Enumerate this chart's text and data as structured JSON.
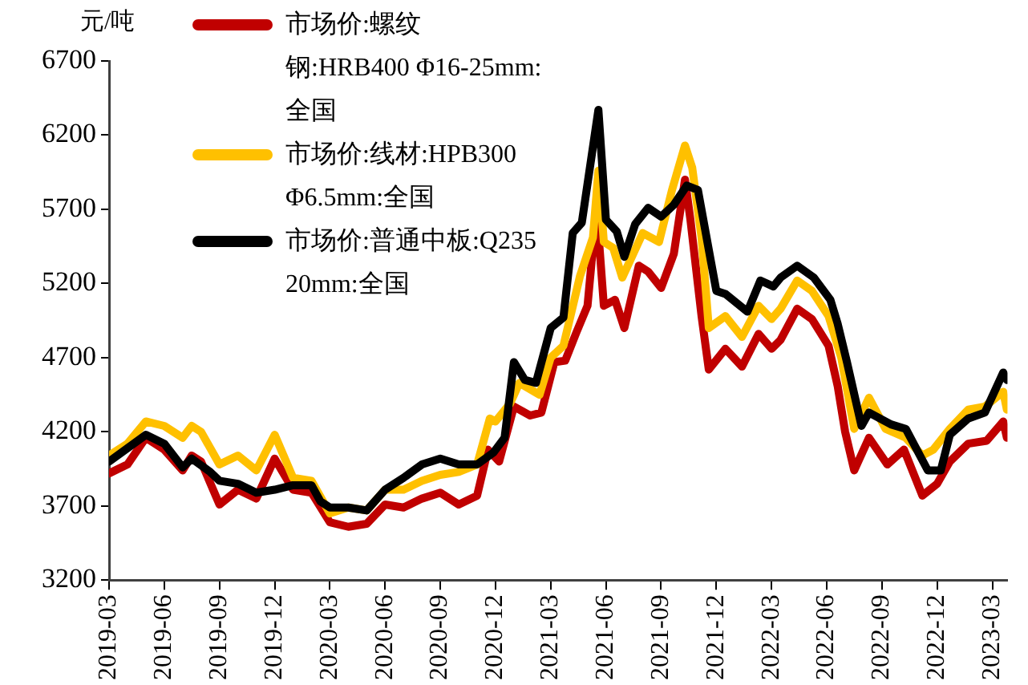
{
  "chart_data": {
    "type": "line",
    "ylabel": "元/吨",
    "xlim": [
      "2019-03-01",
      "2023-03-26"
    ],
    "ylim": [
      3200,
      6700
    ],
    "yticks": [
      3200,
      3700,
      4200,
      4700,
      5200,
      5700,
      6200,
      6700
    ],
    "xticks": [
      "2019-03",
      "2019-06",
      "2019-09",
      "2019-12",
      "2020-03",
      "2020-06",
      "2020-09",
      "2020-12",
      "2021-03",
      "2021-06",
      "2021-09",
      "2021-12",
      "2022-03",
      "2022-06",
      "2022-09",
      "2022-12",
      "2023-03"
    ],
    "grid": false,
    "legend": "top left",
    "marker": "none",
    "line_style": "solid",
    "series": [
      {
        "name": "市场价:螺纹钢:HRB400 Φ16-25mm:全国",
        "color": "#c00000",
        "x": [
          "2019-03-01",
          "2019-04-01",
          "2019-05-01",
          "2019-06-01",
          "2019-07-01",
          "2019-07-16",
          "2019-08-01",
          "2019-09-01",
          "2019-10-01",
          "2019-11-01",
          "2019-12-01",
          "2020-01-01",
          "2020-02-01",
          "2020-03-01",
          "2020-04-01",
          "2020-05-01",
          "2020-06-01",
          "2020-07-01",
          "2020-08-01",
          "2020-09-01",
          "2020-10-01",
          "2020-11-01",
          "2020-11-19",
          "2020-12-07",
          "2021-01-01",
          "2021-01-28",
          "2021-02-16",
          "2021-03-07",
          "2021-03-25",
          "2021-04-13",
          "2021-05-01",
          "2021-05-16",
          "2021-05-28",
          "2021-06-16",
          "2021-07-01",
          "2021-07-25",
          "2021-08-10",
          "2021-09-01",
          "2021-09-22",
          "2021-10-10",
          "2021-10-19",
          "2021-11-07",
          "2021-11-19",
          "2021-12-16",
          "2022-01-13",
          "2022-02-10",
          "2022-03-01",
          "2022-03-16",
          "2022-04-13",
          "2022-05-07",
          "2022-06-04",
          "2022-06-19",
          "2022-07-01",
          "2022-07-16",
          "2022-08-10",
          "2022-09-10",
          "2022-10-07",
          "2022-11-07",
          "2022-12-01",
          "2022-12-22",
          "2023-01-22",
          "2023-02-22",
          "2023-03-19",
          "2023-03-25"
        ],
        "values": [
          3920,
          3980,
          4160,
          4080,
          3940,
          4040,
          4000,
          3710,
          3810,
          3750,
          4020,
          3810,
          3790,
          3590,
          3560,
          3580,
          3710,
          3690,
          3750,
          3790,
          3710,
          3770,
          4080,
          4000,
          4370,
          4310,
          4330,
          4670,
          4680,
          4870,
          5050,
          5710,
          5050,
          5090,
          4900,
          5320,
          5280,
          5170,
          5400,
          5900,
          5630,
          4980,
          4620,
          4760,
          4640,
          4860,
          4760,
          4820,
          5030,
          4960,
          4780,
          4510,
          4200,
          3940,
          4160,
          3980,
          4080,
          3770,
          3850,
          4000,
          4120,
          4140,
          4270,
          4160
        ]
      },
      {
        "name": "市场价:线材:HPB300 Φ6.5mm:全国",
        "color": "#ffc000",
        "x": [
          "2019-03-01",
          "2019-04-01",
          "2019-05-01",
          "2019-06-01",
          "2019-07-01",
          "2019-07-16",
          "2019-08-01",
          "2019-09-01",
          "2019-10-01",
          "2019-11-01",
          "2019-12-01",
          "2020-01-01",
          "2020-02-01",
          "2020-03-01",
          "2020-04-01",
          "2020-05-01",
          "2020-06-01",
          "2020-07-01",
          "2020-08-01",
          "2020-09-01",
          "2020-10-01",
          "2020-11-01",
          "2020-11-22",
          "2020-12-01",
          "2020-12-25",
          "2021-01-10",
          "2021-02-13",
          "2021-03-01",
          "2021-03-22",
          "2021-04-19",
          "2021-05-10",
          "2021-05-19",
          "2021-05-28",
          "2021-06-13",
          "2021-06-28",
          "2021-08-01",
          "2021-08-28",
          "2021-09-19",
          "2021-10-10",
          "2021-10-22",
          "2021-11-07",
          "2021-11-19",
          "2021-12-16",
          "2022-01-13",
          "2022-02-10",
          "2022-03-01",
          "2022-03-16",
          "2022-04-13",
          "2022-05-07",
          "2022-06-04",
          "2022-06-25",
          "2022-07-16",
          "2022-08-10",
          "2022-09-07",
          "2022-10-10",
          "2022-11-07",
          "2022-11-25",
          "2022-12-22",
          "2023-01-22",
          "2023-02-19",
          "2023-03-19",
          "2023-03-25"
        ],
        "values": [
          4040,
          4120,
          4270,
          4240,
          4160,
          4240,
          4200,
          3980,
          4040,
          3940,
          4180,
          3890,
          3870,
          3650,
          3690,
          3670,
          3810,
          3810,
          3870,
          3910,
          3930,
          3980,
          4290,
          4270,
          4390,
          4530,
          4450,
          4700,
          4780,
          5250,
          5510,
          5960,
          5480,
          5440,
          5240,
          5540,
          5480,
          5830,
          6130,
          5980,
          5510,
          4900,
          4980,
          4840,
          5050,
          4960,
          5030,
          5220,
          5150,
          4980,
          4700,
          4220,
          4430,
          4220,
          4160,
          4040,
          4080,
          4220,
          4350,
          4370,
          4470,
          4350
        ]
      },
      {
        "name": "市场价:普通中板:Q235 20mm:全国",
        "color": "#000000",
        "x": [
          "2019-03-01",
          "2019-05-01",
          "2019-06-01",
          "2019-07-01",
          "2019-07-16",
          "2019-08-16",
          "2019-09-01",
          "2019-10-01",
          "2019-11-01",
          "2019-12-01",
          "2020-01-01",
          "2020-02-01",
          "2020-02-16",
          "2020-03-01",
          "2020-04-01",
          "2020-05-01",
          "2020-06-01",
          "2020-07-01",
          "2020-08-01",
          "2020-09-01",
          "2020-10-01",
          "2020-11-01",
          "2020-11-28",
          "2020-12-16",
          "2021-01-01",
          "2021-01-19",
          "2021-02-07",
          "2021-03-01",
          "2021-03-22",
          "2021-04-07",
          "2021-04-22",
          "2021-05-19",
          "2021-06-01",
          "2021-06-19",
          "2021-07-01",
          "2021-07-19",
          "2021-08-10",
          "2021-09-01",
          "2021-09-22",
          "2021-10-13",
          "2021-11-01",
          "2021-11-22",
          "2021-12-01",
          "2021-12-16",
          "2022-01-22",
          "2022-02-13",
          "2022-03-04",
          "2022-03-16",
          "2022-04-13",
          "2022-05-10",
          "2022-06-07",
          "2022-06-19",
          "2022-07-04",
          "2022-07-28",
          "2022-08-10",
          "2022-09-16",
          "2022-10-10",
          "2022-11-16",
          "2022-12-07",
          "2022-12-22",
          "2023-01-22",
          "2023-02-19",
          "2023-03-19",
          "2023-03-25"
        ],
        "values": [
          4000,
          4180,
          4120,
          3960,
          4020,
          3930,
          3870,
          3850,
          3790,
          3810,
          3840,
          3840,
          3730,
          3690,
          3690,
          3670,
          3810,
          3890,
          3980,
          4020,
          3980,
          3980,
          4060,
          4160,
          4670,
          4550,
          4530,
          4900,
          4970,
          5540,
          5610,
          6370,
          5630,
          5550,
          5380,
          5600,
          5710,
          5650,
          5730,
          5860,
          5830,
          5360,
          5150,
          5130,
          5010,
          5220,
          5180,
          5240,
          5320,
          5240,
          5090,
          4930,
          4670,
          4240,
          4330,
          4250,
          4220,
          3940,
          3940,
          4180,
          4290,
          4330,
          4600,
          4550
        ]
      }
    ]
  }
}
